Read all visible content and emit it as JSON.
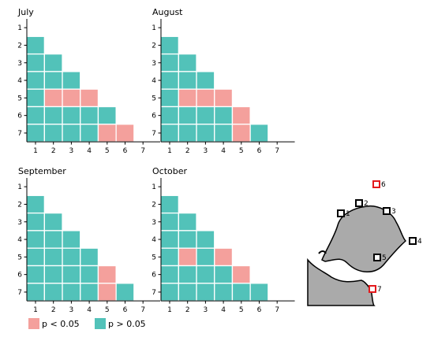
{
  "colors": {
    "significant": "#f4a09c",
    "not_significant": "#52c2b9",
    "grid_line": "#ffffff",
    "land": "#aaaaaa",
    "station_black": "#000000",
    "station_red": "#e3191c"
  },
  "chart_data": [
    {
      "type": "heatmap",
      "title": "July",
      "x_ticks": [
        "1",
        "2",
        "3",
        "4",
        "5",
        "6",
        "7"
      ],
      "y_ticks": [
        "1",
        "2",
        "3",
        "4",
        "5",
        "6",
        "7"
      ],
      "matrix": [
        [
          null,
          null,
          null,
          null,
          null,
          null,
          null
        ],
        [
          0,
          null,
          null,
          null,
          null,
          null,
          null
        ],
        [
          0,
          0,
          null,
          null,
          null,
          null,
          null
        ],
        [
          0,
          0,
          0,
          null,
          null,
          null,
          null
        ],
        [
          0,
          1,
          1,
          1,
          null,
          null,
          null
        ],
        [
          0,
          0,
          0,
          0,
          0,
          null,
          null
        ],
        [
          0,
          0,
          0,
          0,
          1,
          1,
          null
        ]
      ]
    },
    {
      "type": "heatmap",
      "title": "August",
      "x_ticks": [
        "1",
        "2",
        "3",
        "4",
        "5",
        "6",
        "7"
      ],
      "y_ticks": [
        "1",
        "2",
        "3",
        "4",
        "5",
        "6",
        "7"
      ],
      "matrix": [
        [
          null,
          null,
          null,
          null,
          null,
          null,
          null
        ],
        [
          0,
          null,
          null,
          null,
          null,
          null,
          null
        ],
        [
          0,
          0,
          null,
          null,
          null,
          null,
          null
        ],
        [
          0,
          0,
          0,
          null,
          null,
          null,
          null
        ],
        [
          0,
          1,
          1,
          1,
          null,
          null,
          null
        ],
        [
          0,
          0,
          0,
          0,
          1,
          null,
          null
        ],
        [
          0,
          0,
          0,
          0,
          1,
          0,
          null
        ]
      ]
    },
    {
      "type": "heatmap",
      "title": "September",
      "x_ticks": [
        "1",
        "2",
        "3",
        "4",
        "5",
        "6",
        "7"
      ],
      "y_ticks": [
        "1",
        "2",
        "3",
        "4",
        "5",
        "6",
        "7"
      ],
      "matrix": [
        [
          null,
          null,
          null,
          null,
          null,
          null,
          null
        ],
        [
          0,
          null,
          null,
          null,
          null,
          null,
          null
        ],
        [
          0,
          0,
          null,
          null,
          null,
          null,
          null
        ],
        [
          0,
          0,
          0,
          null,
          null,
          null,
          null
        ],
        [
          0,
          0,
          0,
          0,
          null,
          null,
          null
        ],
        [
          0,
          0,
          0,
          0,
          1,
          null,
          null
        ],
        [
          0,
          0,
          0,
          0,
          1,
          0,
          null
        ]
      ]
    },
    {
      "type": "heatmap",
      "title": "October",
      "x_ticks": [
        "1",
        "2",
        "3",
        "4",
        "5",
        "6",
        "7"
      ],
      "y_ticks": [
        "1",
        "2",
        "3",
        "4",
        "5",
        "6",
        "7"
      ],
      "matrix": [
        [
          null,
          null,
          null,
          null,
          null,
          null,
          null
        ],
        [
          0,
          null,
          null,
          null,
          null,
          null,
          null
        ],
        [
          0,
          0,
          null,
          null,
          null,
          null,
          null
        ],
        [
          0,
          0,
          0,
          null,
          null,
          null,
          null
        ],
        [
          0,
          1,
          0,
          1,
          null,
          null,
          null
        ],
        [
          0,
          0,
          0,
          0,
          1,
          null,
          null
        ],
        [
          0,
          0,
          0,
          0,
          0,
          0,
          null
        ]
      ]
    }
  ],
  "legend": {
    "items": [
      {
        "label": "p < 0.05",
        "color": "#f4a09c"
      },
      {
        "label": "p > 0.05",
        "color": "#52c2b9"
      }
    ]
  },
  "map": {
    "stations": [
      {
        "label": "1",
        "highlight": false
      },
      {
        "label": "2",
        "highlight": false
      },
      {
        "label": "3",
        "highlight": false
      },
      {
        "label": "4",
        "highlight": false
      },
      {
        "label": "5",
        "highlight": false
      },
      {
        "label": "6",
        "highlight": true
      },
      {
        "label": "7",
        "highlight": true
      }
    ]
  }
}
